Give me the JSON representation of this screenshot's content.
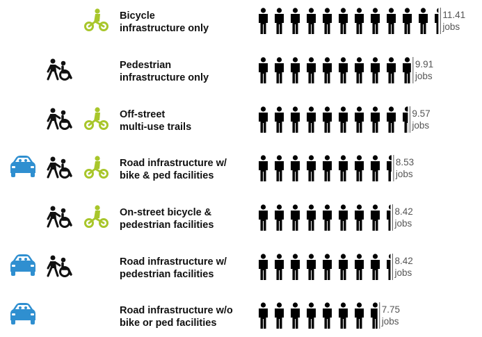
{
  "chart_data": {
    "type": "bar",
    "style": "pictogram",
    "unit_label": "jobs",
    "categories": [
      "Bicycle infrastructure only",
      "Pedestrian infrastructure only",
      "Off-street multi-use trails",
      "Road infrastructure w/ bike & ped facilities",
      "On-street bicycle & pedestrian facilities",
      "Road infrastructure w/ pedestrian facilities",
      "Road infrastructure w/o bike or ped facilities"
    ],
    "label_lines": [
      [
        "Bicycle",
        "infrastructure only"
      ],
      [
        "Pedestrian",
        "infrastructure only"
      ],
      [
        "Off-street",
        "multi-use trails"
      ],
      [
        "Road infrastructure w/",
        "bike & ped facilities"
      ],
      [
        "On-street bicycle &",
        "pedestrian facilities"
      ],
      [
        "Road infrastructure w/",
        "pedestrian facilities"
      ],
      [
        "Road infrastructure w/o",
        "bike or ped facilities"
      ]
    ],
    "values": [
      11.41,
      9.91,
      9.57,
      8.53,
      8.42,
      8.42,
      7.75
    ],
    "value_labels": [
      "11.41",
      "9.91",
      "9.57",
      "8.53",
      "8.42",
      "8.42",
      "7.75"
    ],
    "mode_icons": [
      [
        "bicycle-icon"
      ],
      [
        "pedestrian-wheelchair-icon"
      ],
      [
        "pedestrian-wheelchair-icon",
        "bicycle-icon"
      ],
      [
        "car-icon",
        "pedestrian-wheelchair-icon",
        "bicycle-icon"
      ],
      [
        "pedestrian-wheelchair-icon",
        "bicycle-icon"
      ],
      [
        "car-icon",
        "pedestrian-wheelchair-icon"
      ],
      [
        "car-icon"
      ]
    ],
    "colors": {
      "bicycle": "#a8c62b",
      "car": "#2f8fd0",
      "pedestrian": "#111111",
      "figure": "#000000",
      "value_text": "#555555",
      "label_text": "#111111"
    }
  }
}
